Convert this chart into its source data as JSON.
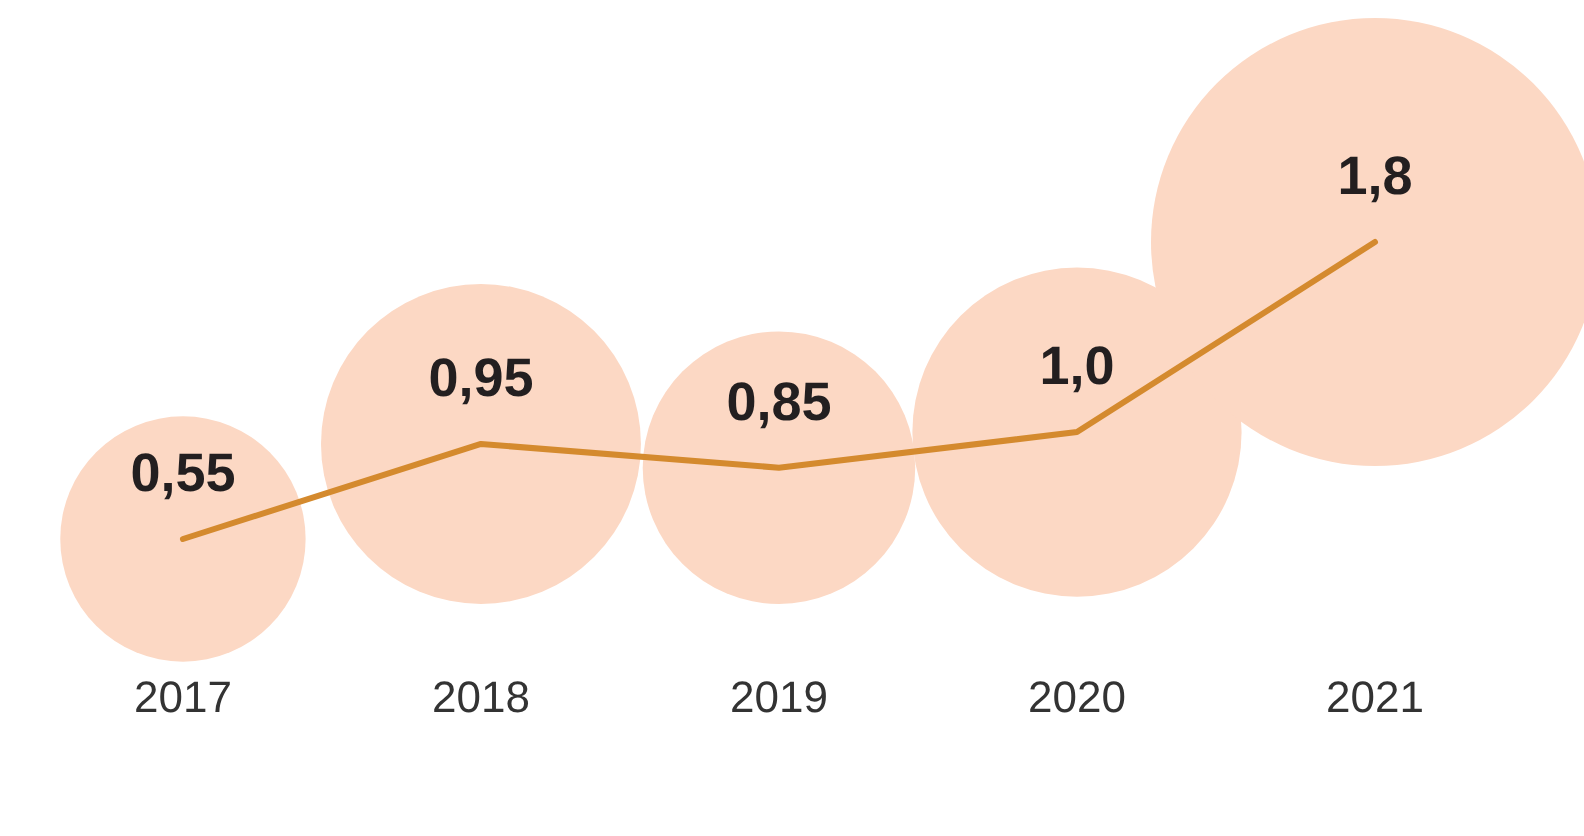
{
  "chart_data": {
    "type": "line",
    "categories": [
      "2017",
      "2018",
      "2019",
      "2020",
      "2021"
    ],
    "tick_labels": "x",
    "grid": false,
    "legend": false,
    "series": [
      {
        "type": "bubble",
        "color": "#fcd8c4",
        "values": [
          0.55,
          0.95,
          0.85,
          1.0,
          1.8
        ],
        "sizes": [
          0.3,
          0.51,
          0.37,
          0.54,
          1
        ]
      },
      {
        "color": "#d48a2e",
        "values": [
          0.55,
          0.95,
          0.85,
          1.0,
          1.8
        ],
        "value_labels": [
          "0,55",
          "0,95",
          "0,85",
          "1,0",
          "1,8"
        ]
      }
    ]
  }
}
